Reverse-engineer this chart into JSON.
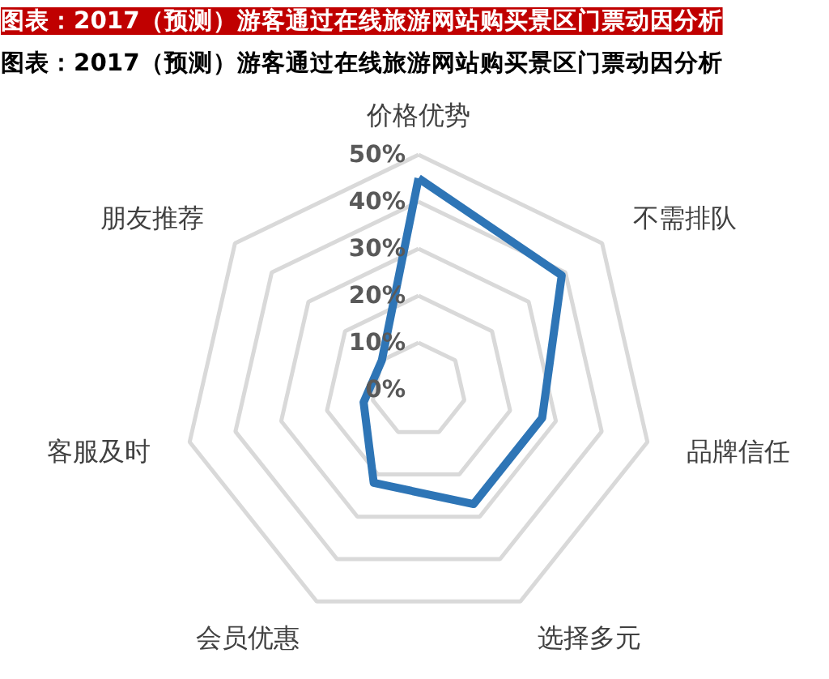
{
  "chart_data": {
    "type": "radar",
    "title": "图表：2017（预测）游客通过在线旅游网站购买景区门票动因分析",
    "subtitle": "图表：2017（预测）游客通过在线旅游网站购买景区门票动因分析",
    "categories": [
      "价格优势",
      "不需排队",
      "品牌信任",
      "选择多元",
      "会员优惠",
      "客服及时",
      "朋友推荐"
    ],
    "series": [
      {
        "color": "#2e75b6",
        "values": [
          45,
          39,
          27,
          27,
          22,
          12,
          10
        ]
      }
    ],
    "ylim": [
      0,
      50
    ],
    "yticks": [
      {
        "value": 0,
        "label": "0%"
      },
      {
        "value": 10,
        "label": "10%"
      },
      {
        "value": 20,
        "label": "20%"
      },
      {
        "value": 30,
        "label": "30%"
      },
      {
        "value": 40,
        "label": "40%"
      },
      {
        "value": 50,
        "label": "50%"
      }
    ],
    "grid": true,
    "line_style": "solid"
  }
}
